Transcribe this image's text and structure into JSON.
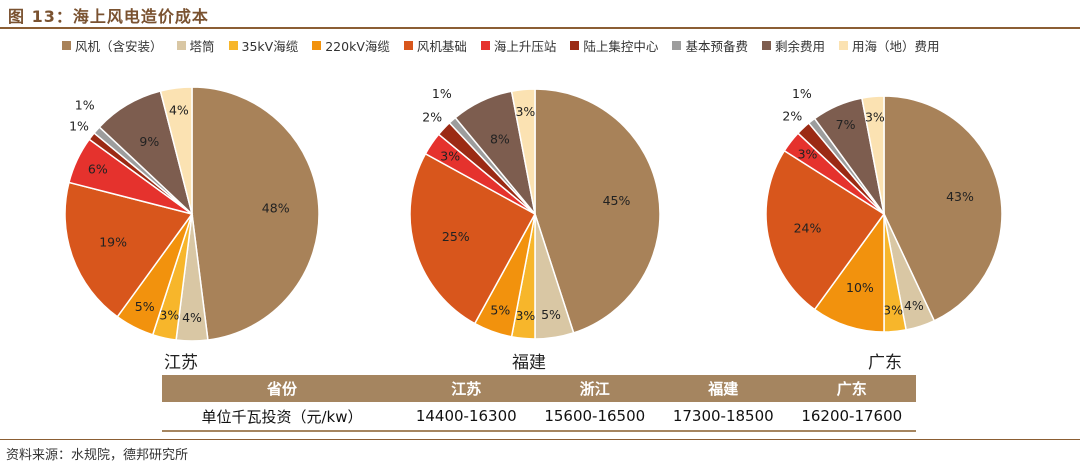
{
  "figure": {
    "title": "图 13：海上风电造价成本",
    "source": "资料来源：水规院，德邦研究所"
  },
  "legend": [
    {
      "label": "风机（含安装）",
      "color": "#a88259"
    },
    {
      "label": "塔筒",
      "color": "#d9c7a4"
    },
    {
      "label": "35kV海缆",
      "color": "#f7b62b"
    },
    {
      "label": "220kV海缆",
      "color": "#f2920d"
    },
    {
      "label": "风机基础",
      "color": "#d8561c"
    },
    {
      "label": "海上升压站",
      "color": "#e5322d"
    },
    {
      "label": "陆上集控中心",
      "color": "#9b2a14"
    },
    {
      "label": "基本预备费",
      "color": "#9d9d9d"
    },
    {
      "label": "剩余费用",
      "color": "#7d5d4f"
    },
    {
      "label": "用海（地）费用",
      "color": "#fbe2b2"
    }
  ],
  "chart_data": [
    {
      "type": "pie",
      "title": "江苏",
      "categories": [
        "风机（含安装）",
        "塔筒",
        "35kV海缆",
        "220kV海缆",
        "风机基础",
        "海上升压站",
        "陆上集控中心",
        "基本预备费",
        "剩余费用",
        "用海（地）费用"
      ],
      "values": [
        48,
        4,
        3,
        5,
        19,
        6,
        1,
        1,
        9,
        4
      ],
      "labels": [
        "48%",
        "4%",
        "3%",
        "5%",
        "19%",
        "6%",
        "1%",
        "1%",
        "9%",
        "4%"
      ]
    },
    {
      "type": "pie",
      "title": "福建",
      "categories": [
        "风机（含安装）",
        "塔筒",
        "35kV海缆",
        "220kV海缆",
        "风机基础",
        "海上升压站",
        "陆上集控中心",
        "基本预备费",
        "剩余费用",
        "用海（地）费用"
      ],
      "values": [
        45,
        5,
        3,
        5,
        25,
        3,
        2,
        1,
        8,
        3
      ],
      "labels": [
        "45%",
        "5%",
        "3%",
        "5%",
        "25%",
        "3%",
        "2%",
        "1%",
        "8%",
        "3%"
      ]
    },
    {
      "type": "pie",
      "title": "广东",
      "categories": [
        "风机（含安装）",
        "塔筒",
        "35kV海缆",
        "220kV海缆",
        "风机基础",
        "海上升压站",
        "陆上集控中心",
        "基本预备费",
        "剩余费用",
        "用海（地）费用"
      ],
      "values": [
        43,
        4,
        3,
        10,
        24,
        3,
        2,
        1,
        7,
        3
      ],
      "labels": [
        "43%",
        "4%",
        "3%",
        "10%",
        "24%",
        "3%",
        "2%",
        "1%",
        "7%",
        "3%"
      ]
    }
  ],
  "table": {
    "headers": [
      "省份",
      "江苏",
      "浙江",
      "福建",
      "广东"
    ],
    "row": [
      "单位千瓦投资（元/kw）",
      "14400-16300",
      "15600-16500",
      "17300-18500",
      "16200-17600"
    ]
  }
}
